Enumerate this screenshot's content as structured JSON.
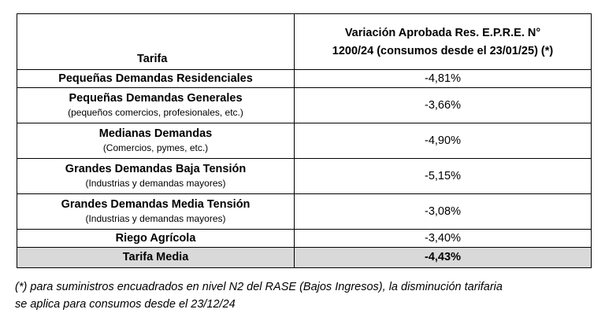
{
  "table": {
    "header": {
      "tarifa": "Tarifa",
      "variacion_line1": "Variación Aprobada Res. E.P.R.E. N°",
      "variacion_line2": "1200/24 (consumos desde el 23/01/25) (*)"
    },
    "rows": [
      {
        "name": "Pequeñas Demandas Residenciales",
        "sub": "",
        "value": "-4,81%"
      },
      {
        "name": "Pequeñas Demandas Generales",
        "sub": "(pequeños comercios, profesionales, etc.)",
        "value": "-3,66%"
      },
      {
        "name": "Medianas Demandas",
        "sub": "(Comercios, pymes, etc.)",
        "value": "-4,90%"
      },
      {
        "name": "Grandes Demandas Baja Tensión",
        "sub": "(Industrias y demandas mayores)",
        "value": "-5,15%"
      },
      {
        "name": "Grandes Demandas Media Tensión",
        "sub": "(Industrias y demandas mayores)",
        "value": "-3,08%"
      },
      {
        "name": "Riego Agrícola",
        "sub": "",
        "value": "-3,40%"
      }
    ],
    "total": {
      "name": "Tarifa Media",
      "value": "-4,43%"
    },
    "total_bg_color": "#d9d9d9"
  },
  "footnote": {
    "line1": "(*) para suministros encuadrados en nivel N2 del RASE (Bajos Ingresos), la disminución tarifaria",
    "line2": "se aplica para consumos desde el 23/12/24"
  }
}
